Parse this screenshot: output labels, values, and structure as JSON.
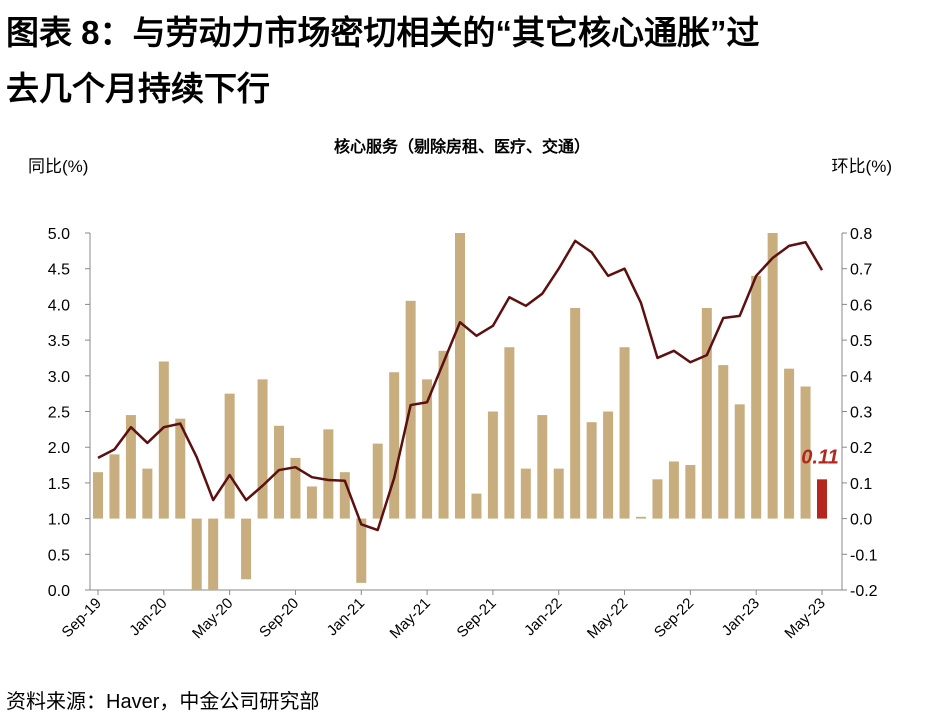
{
  "chart_data": {
    "type": "bar_line",
    "title": [
      "图表 8：与劳动力市场密切相关的“其它核心通胀”过",
      "去几个月持续下行"
    ],
    "subtitle": "核心服务（剔除房租、医疗、交通）",
    "ylabel": "同比(%)",
    "y2label": "环比(%)",
    "source": "资料来源：Haver，中金公司研究部",
    "categories": [
      "Sep-19",
      null,
      null,
      null,
      "Jan-20",
      null,
      null,
      null,
      "May-20",
      null,
      null,
      null,
      "Sep-20",
      null,
      null,
      null,
      "Jan-21",
      null,
      null,
      null,
      "May-21",
      null,
      null,
      null,
      "Sep-21",
      null,
      null,
      null,
      "Jan-22",
      null,
      null,
      null,
      "May-22",
      null,
      null,
      null,
      "Sep-22",
      null,
      null,
      null,
      "Jan-23",
      null,
      null,
      null,
      "May-23"
    ],
    "ylim": [
      0,
      5
    ],
    "yticks": [
      {
        "value": 0,
        "label": "0.0"
      },
      0.5,
      {
        "value": 1,
        "label": "1.0"
      },
      1.5,
      {
        "value": 2,
        "label": "2.0"
      },
      2.5,
      {
        "value": 3,
        "label": "3.0"
      },
      3.5,
      {
        "value": 4,
        "label": "4.0"
      },
      4.5,
      {
        "value": 5,
        "label": "5.0"
      }
    ],
    "y2lim": [
      -0.2,
      0.8
    ],
    "y2ticks": [
      -0.2,
      -0.1,
      {
        "value": 0,
        "label": "0.0"
      },
      0.1,
      0.2,
      0.3,
      0.4,
      0.5,
      0.6,
      0.7,
      0.8
    ],
    "series": [
      {
        "type": "bar",
        "axis": "y2",
        "color": "#c8ad7f",
        "highlight": {
          "index": 44,
          "color": "#b5261e"
        },
        "values": [
          0.13,
          0.18,
          0.29,
          0.14,
          0.44,
          0.28,
          -0.2,
          -0.2,
          0.35,
          -0.17,
          0.39,
          0.26,
          0.17,
          0.09,
          0.25,
          0.13,
          -0.18,
          0.21,
          0.41,
          0.61,
          0.39,
          0.47,
          0.8,
          0.07,
          0.3,
          0.48,
          0.14,
          0.29,
          0.14,
          0.59,
          0.27,
          0.3,
          0.48,
          0.005,
          0.11,
          0.16,
          0.15,
          0.59,
          0.43,
          0.32,
          0.68,
          0.8,
          0.42,
          0.37,
          0.11
        ]
      },
      {
        "type": "line",
        "axis": "y",
        "color": "#5c1010",
        "values": [
          1.85,
          1.97,
          2.28,
          2.06,
          2.28,
          2.33,
          1.86,
          1.26,
          1.61,
          1.26,
          1.46,
          1.68,
          1.72,
          1.58,
          1.54,
          1.53,
          0.92,
          0.84,
          1.57,
          2.59,
          2.63,
          3.19,
          3.75,
          3.56,
          3.7,
          4.1,
          3.98,
          4.15,
          4.5,
          4.89,
          4.73,
          4.4,
          4.5,
          4.02,
          3.25,
          3.35,
          3.19,
          3.29,
          3.81,
          3.84,
          4.4,
          4.65,
          4.82,
          4.87,
          4.48
        ]
      }
    ]
  }
}
